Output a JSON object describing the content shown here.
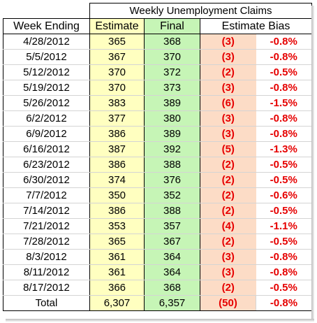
{
  "table": {
    "group_title": "Weekly Unemployment Claims",
    "headers": {
      "week_ending": "Week Ending",
      "estimate": "Estimate",
      "final": "Final",
      "estimate_bias": "Estimate Bias"
    },
    "rows": [
      {
        "week": "4/28/2012",
        "estimate": "365",
        "final": "368",
        "bias": "(3)",
        "pct": "-0.8%"
      },
      {
        "week": "5/5/2012",
        "estimate": "367",
        "final": "370",
        "bias": "(3)",
        "pct": "-0.8%"
      },
      {
        "week": "5/12/2012",
        "estimate": "370",
        "final": "372",
        "bias": "(2)",
        "pct": "-0.5%"
      },
      {
        "week": "5/19/2012",
        "estimate": "370",
        "final": "373",
        "bias": "(3)",
        "pct": "-0.8%"
      },
      {
        "week": "5/26/2012",
        "estimate": "383",
        "final": "389",
        "bias": "(6)",
        "pct": "-1.5%"
      },
      {
        "week": "6/2/2012",
        "estimate": "377",
        "final": "380",
        "bias": "(3)",
        "pct": "-0.8%"
      },
      {
        "week": "6/9/2012",
        "estimate": "386",
        "final": "389",
        "bias": "(3)",
        "pct": "-0.8%"
      },
      {
        "week": "6/16/2012",
        "estimate": "387",
        "final": "392",
        "bias": "(5)",
        "pct": "-1.3%"
      },
      {
        "week": "6/23/2012",
        "estimate": "386",
        "final": "388",
        "bias": "(2)",
        "pct": "-0.5%"
      },
      {
        "week": "6/30/2012",
        "estimate": "374",
        "final": "376",
        "bias": "(2)",
        "pct": "-0.5%"
      },
      {
        "week": "7/7/2012",
        "estimate": "350",
        "final": "352",
        "bias": "(2)",
        "pct": "-0.6%"
      },
      {
        "week": "7/14/2012",
        "estimate": "386",
        "final": "388",
        "bias": "(2)",
        "pct": "-0.5%"
      },
      {
        "week": "7/21/2012",
        "estimate": "353",
        "final": "357",
        "bias": "(4)",
        "pct": "-1.1%"
      },
      {
        "week": "7/28/2012",
        "estimate": "365",
        "final": "367",
        "bias": "(2)",
        "pct": "-0.5%"
      },
      {
        "week": "8/3/2012",
        "estimate": "361",
        "final": "364",
        "bias": "(3)",
        "pct": "-0.8%"
      },
      {
        "week": "8/11/2012",
        "estimate": "361",
        "final": "364",
        "bias": "(3)",
        "pct": "-0.8%"
      },
      {
        "week": "8/17/2012",
        "estimate": "366",
        "final": "368",
        "bias": "(2)",
        "pct": "-0.5%"
      }
    ],
    "total": {
      "label": "Total",
      "estimate": "6,307",
      "final": "6,357",
      "bias": "(50)",
      "pct": "-0.8%"
    }
  },
  "colors": {
    "estimate_fill": "#ffffc0",
    "final_fill": "#c6f5b6",
    "bias_fill": "#fcdcc6",
    "negative_text": "#e60000",
    "border": "#000000",
    "gridline": "#d4d4d4"
  }
}
